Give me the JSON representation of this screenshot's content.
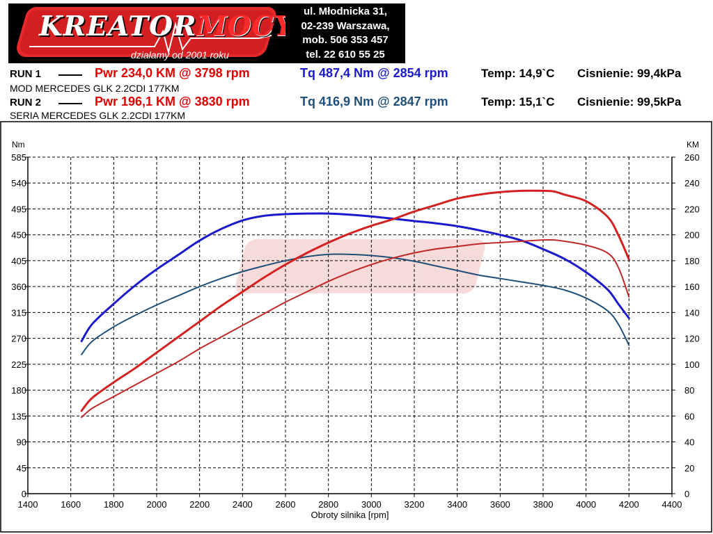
{
  "header": {
    "logo_word_1": "KREATOR",
    "logo_word_2": "MOCY",
    "logo_tagline": "działamy od 2001 roku",
    "address_lines": [
      "ul. Młodnicka 31,",
      "02-239  Warszawa,",
      "mob.  506 353 457",
      "tel.  22 610 55 25"
    ]
  },
  "runs": [
    {
      "label": "RUN 1",
      "power": "Pwr  234,0 KM @ 3798 rpm",
      "torque": "Tq 487,4 Nm @ 2854 rpm",
      "temp": "Temp: 14,9`C",
      "pressure": "Cisnienie: 99,4kPa",
      "description": "MOD  MERCEDES GLK 2.2CDI 177KM",
      "torque_color": "#1a1acc"
    },
    {
      "label": "RUN 2",
      "power": "Pwr  196,1 KM @ 3830 rpm",
      "torque": "Tq 416,9 Nm @ 2847 rpm",
      "temp": "Temp: 15,1`C",
      "pressure": "Cisnienie: 99,5kPa",
      "description": "SERIA MERCEDES GLK 2.2CDI 177KM",
      "torque_color": "#1f4f78"
    }
  ],
  "colors": {
    "power": "#e00000",
    "power_run1": "#d42020",
    "power_run2": "#c02828",
    "torque_run1": "#1a1acc",
    "torque_run2": "#1f4f78",
    "grid": "#000000"
  },
  "chart_data": {
    "type": "line",
    "xlabel": "Obroty silnika [rpm]",
    "ylabel": "Nm",
    "y2label": "KM",
    "xlim": [
      1400,
      4400
    ],
    "xticks": [
      1400,
      1600,
      1800,
      2000,
      2200,
      2400,
      2600,
      2800,
      3000,
      3200,
      3400,
      3600,
      3800,
      4000,
      4200,
      4400
    ],
    "ylim": [
      0,
      585
    ],
    "yticks": [
      0,
      45,
      90,
      135,
      180,
      225,
      270,
      315,
      360,
      405,
      450,
      495,
      540,
      585
    ],
    "y2lim": [
      0,
      260
    ],
    "y2ticks": [
      0,
      20,
      40,
      60,
      80,
      100,
      120,
      140,
      160,
      180,
      200,
      220,
      240,
      260
    ],
    "grid": true,
    "series": [
      {
        "axis": "left",
        "color": "#1a1acc",
        "width": 3,
        "x": [
          1650,
          1700,
          1800,
          1900,
          2000,
          2100,
          2200,
          2300,
          2400,
          2500,
          2600,
          2700,
          2800,
          2900,
          3000,
          3100,
          3200,
          3300,
          3400,
          3500,
          3600,
          3700,
          3800,
          3900,
          4000,
          4100,
          4150,
          4200
        ],
        "y": [
          265,
          295,
          330,
          362,
          390,
          415,
          440,
          460,
          475,
          483,
          486,
          487,
          487,
          485,
          482,
          478,
          474,
          470,
          465,
          458,
          450,
          440,
          425,
          408,
          385,
          355,
          330,
          305
        ]
      },
      {
        "axis": "left",
        "color": "#1f4f78",
        "width": 2,
        "x": [
          1650,
          1700,
          1800,
          1900,
          2000,
          2100,
          2200,
          2300,
          2400,
          2500,
          2600,
          2700,
          2800,
          2900,
          3000,
          3100,
          3200,
          3300,
          3400,
          3500,
          3600,
          3700,
          3800,
          3900,
          4000,
          4100,
          4150,
          4200
        ],
        "y": [
          242,
          265,
          290,
          310,
          328,
          344,
          360,
          374,
          386,
          396,
          405,
          412,
          416,
          416,
          414,
          410,
          404,
          396,
          388,
          380,
          374,
          368,
          362,
          354,
          340,
          318,
          295,
          258
        ]
      },
      {
        "axis": "right",
        "color": "#d42020",
        "width": 3,
        "x": [
          1650,
          1700,
          1800,
          1900,
          2000,
          2100,
          2200,
          2300,
          2400,
          2500,
          2600,
          2700,
          2800,
          2900,
          3000,
          3100,
          3200,
          3300,
          3400,
          3500,
          3600,
          3700,
          3800,
          3850,
          3900,
          4000,
          4100,
          4150,
          4200
        ],
        "y": [
          64,
          74,
          86,
          97,
          109,
          121,
          133,
          145,
          156,
          167,
          177,
          186,
          194,
          201,
          207,
          212,
          218,
          223,
          228,
          231,
          233,
          234,
          234,
          233.5,
          231,
          226,
          214,
          200,
          181
        ]
      },
      {
        "axis": "right",
        "color": "#c02828",
        "width": 2,
        "x": [
          1650,
          1700,
          1800,
          1900,
          2000,
          2100,
          2200,
          2300,
          2400,
          2500,
          2600,
          2700,
          2800,
          2900,
          3000,
          3100,
          3200,
          3300,
          3400,
          3500,
          3600,
          3700,
          3800,
          3850,
          3900,
          4000,
          4100,
          4150,
          4200
        ],
        "y": [
          59,
          66,
          75,
          84,
          93,
          102,
          112,
          121,
          130,
          139,
          148,
          156,
          164,
          171,
          177,
          182,
          186,
          189,
          191,
          193,
          194,
          195,
          196,
          196,
          195,
          192,
          186,
          175,
          152
        ]
      }
    ]
  }
}
